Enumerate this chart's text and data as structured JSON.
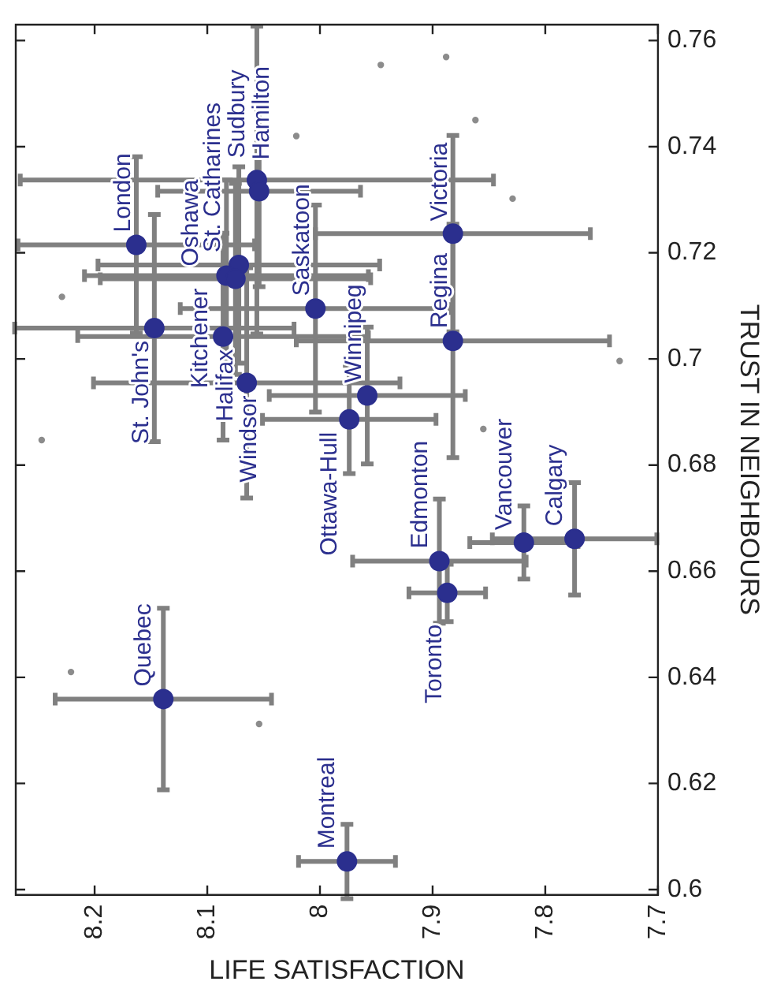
{
  "chart_data": {
    "type": "scatter",
    "xlabel": "LIFE SATISFACTION",
    "ylabel": "TRUST IN NEIGHBOURS",
    "xlim": [
      8.27,
      7.7
    ],
    "ylim": [
      0.599,
      0.763
    ],
    "xticks": [
      8.2,
      8.1,
      8,
      7.9,
      7.8,
      7.7
    ],
    "yticks": [
      0.6,
      0.62,
      0.64,
      0.66,
      0.68,
      0.7,
      0.72,
      0.74,
      0.76
    ],
    "marker": "circle",
    "series": [
      {
        "color": "#8c8c8c",
        "x": [
          8.229,
          8.247,
          8.021,
          7.946,
          7.888,
          7.862,
          7.829,
          7.734,
          7.855,
          8.221,
          8.054
        ],
        "values": [
          0.7117,
          0.6847,
          0.742,
          0.7554,
          0.7569,
          0.745,
          0.7302,
          0.6996,
          0.6868,
          0.641,
          0.6312
        ]
      },
      {
        "color": "#2b2f8e",
        "x": [
          8.163,
          8.056,
          8.054,
          8.072,
          8.083,
          8.075,
          8.004,
          8.147,
          8.086,
          8.065,
          7.974,
          7.958,
          7.882,
          7.882,
          7.894,
          7.887,
          7.819,
          7.774,
          8.139,
          7.976
        ],
        "values": [
          0.7215,
          0.7337,
          0.7316,
          0.7177,
          0.7157,
          0.7151,
          0.7095,
          0.7058,
          0.7042,
          0.6955,
          0.6886,
          0.6931,
          0.7236,
          0.7034,
          0.6619,
          0.6559,
          0.6654,
          0.6661,
          0.6359,
          0.6053
        ],
        "xerrors": [
          0.105,
          0.21,
          0.09,
          0.125,
          0.126,
          0.12,
          0.12,
          0.124,
          0.129,
          0.136,
          0.077,
          0.087,
          0.122,
          0.139,
          0.077,
          0.034,
          0.048,
          0.073,
          0.096,
          0.043
        ],
        "errors": [
          0.0166,
          0.029,
          0.018,
          0.0185,
          0.018,
          0.018,
          0.0195,
          0.0214,
          0.0195,
          0.0217,
          0.0102,
          0.0129,
          0.0185,
          0.022,
          0.0117,
          0.0054,
          0.0069,
          0.0106,
          0.0171,
          0.007
        ]
      }
    ],
    "annotations": [
      {
        "text": "London",
        "x": 8.163,
        "y": 0.7215
      },
      {
        "text": "Sudbury",
        "x": 8.056,
        "y": 0.7337
      },
      {
        "text": "Hamilton",
        "x": 8.054,
        "y": 0.7316
      },
      {
        "text": "St. Catharines",
        "x": 8.072,
        "y": 0.7177
      },
      {
        "text": "Kitchener",
        "x": 8.083,
        "y": 0.7157
      },
      {
        "text": "Oshawa",
        "x": 8.075,
        "y": 0.7151
      },
      {
        "text": "Saskatoon",
        "x": 8.004,
        "y": 0.7095
      },
      {
        "text": "St. John's",
        "x": 8.147,
        "y": 0.7058
      },
      {
        "text": "Halifax",
        "x": 8.086,
        "y": 0.7042
      },
      {
        "text": "Windsor",
        "x": 8.065,
        "y": 0.6955
      },
      {
        "text": "Ottawa-Hull",
        "x": 7.974,
        "y": 0.6886
      },
      {
        "text": "Winnipeg",
        "x": 7.958,
        "y": 0.6931
      },
      {
        "text": "Victoria",
        "x": 7.882,
        "y": 0.7236
      },
      {
        "text": "Regina",
        "x": 7.882,
        "y": 0.7034
      },
      {
        "text": "Edmonton",
        "x": 7.894,
        "y": 0.6619
      },
      {
        "text": "Toronto",
        "x": 7.887,
        "y": 0.6559
      },
      {
        "text": "Vancouver",
        "x": 7.819,
        "y": 0.6654
      },
      {
        "text": "Calgary",
        "x": 7.774,
        "y": 0.6661
      },
      {
        "text": "Quebec",
        "x": 8.139,
        "y": 0.6359
      },
      {
        "text": "Montreal",
        "x": 7.976,
        "y": 0.6053
      }
    ]
  }
}
